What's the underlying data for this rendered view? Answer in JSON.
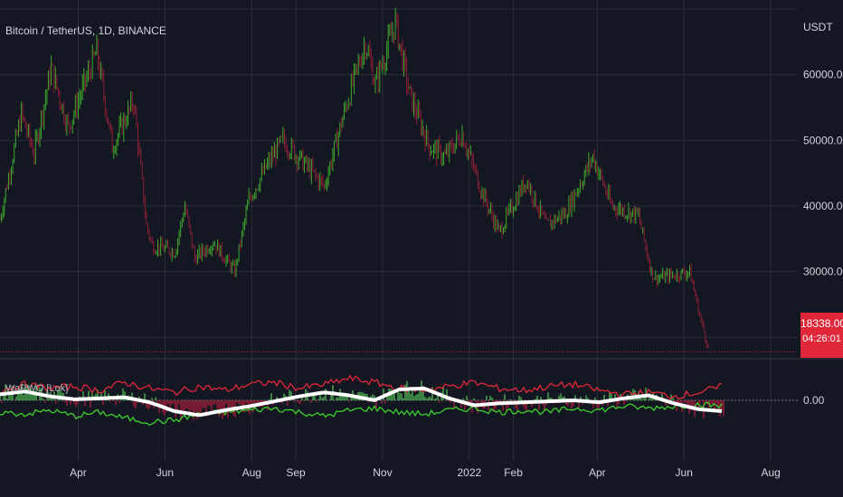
{
  "chart_data": {
    "type": "candlestick",
    "title": "Bitcoin / TetherUS, 1D, BINANCE",
    "indicator_title": "WaPWO [Lok]",
    "price_unit": "USDT",
    "last_price": "18338.00",
    "countdown": "04:26:01",
    "y_ticks": [
      "60000.00",
      "50000.00",
      "40000.00",
      "30000.00"
    ],
    "y_tick_values": [
      60000,
      50000,
      40000,
      30000
    ],
    "indicator_ticks": [
      "0.00"
    ],
    "x_ticks": [
      "Apr",
      "Jun",
      "Aug",
      "Sep",
      "Nov",
      "2022",
      "Feb",
      "Apr",
      "Jun",
      "Aug"
    ],
    "x_tick_dates": [
      "2021-04-01",
      "2021-06-01",
      "2021-08-01",
      "2021-09-01",
      "2021-11-01",
      "2022-01-01",
      "2022-02-01",
      "2022-04-01",
      "2022-06-01",
      "2022-08-01"
    ],
    "x_range": [
      "2021-02-05",
      "2022-08-20"
    ],
    "y_range": [
      17000,
      70000
    ],
    "price_series": {
      "dates": [
        "2021-02-05",
        "2021-02-20",
        "2021-03-01",
        "2021-03-13",
        "2021-03-25",
        "2021-04-14",
        "2021-04-25",
        "2021-05-10",
        "2021-05-19",
        "2021-05-23",
        "2021-06-08",
        "2021-06-15",
        "2021-06-22",
        "2021-07-05",
        "2021-07-20",
        "2021-07-30",
        "2021-08-14",
        "2021-08-23",
        "2021-09-07",
        "2021-09-21",
        "2021-10-06",
        "2021-10-20",
        "2021-10-27",
        "2021-11-10",
        "2021-11-20",
        "2021-12-04",
        "2021-12-15",
        "2021-12-27",
        "2022-01-10",
        "2022-01-22",
        "2022-02-10",
        "2022-02-24",
        "2022-03-10",
        "2022-03-29",
        "2022-04-11",
        "2022-04-30",
        "2022-05-09",
        "2022-05-12",
        "2022-05-25",
        "2022-06-05",
        "2022-06-13",
        "2022-06-18"
      ],
      "close": [
        38000,
        54000,
        48000,
        61000,
        52000,
        63500,
        49000,
        56000,
        37000,
        34000,
        33000,
        40000,
        32000,
        34500,
        30000,
        41000,
        47000,
        50000,
        46500,
        43000,
        55000,
        65000,
        58500,
        68000,
        57000,
        49000,
        47500,
        51000,
        42000,
        36000,
        44000,
        37000,
        39000,
        47500,
        40000,
        38500,
        30000,
        29000,
        29500,
        30000,
        22500,
        18338
      ]
    },
    "indicator": {
      "zero": 0,
      "range": [
        -1.2,
        1.2
      ],
      "osc_white": [
        0.3,
        0.45,
        0.2,
        0.05,
        0.1,
        0.15,
        -0.1,
        -0.55,
        -0.75,
        -0.5,
        -0.3,
        -0.05,
        0.2,
        0.4,
        0.25,
        0.0,
        0.55,
        0.6,
        0.1,
        -0.25,
        -0.15,
        -0.1,
        -0.05,
        0.0,
        -0.1,
        0.1,
        0.25,
        -0.15,
        -0.45,
        -0.55
      ],
      "upper_red": [
        0.5,
        0.8,
        0.6,
        0.7,
        0.5,
        0.9,
        0.6,
        0.4,
        0.7,
        0.5,
        0.8,
        0.9,
        0.6,
        0.8,
        1.1,
        0.9,
        0.6,
        0.5,
        0.7,
        0.9,
        0.6,
        0.5,
        0.7,
        0.8,
        0.5,
        0.3,
        0.4,
        0.2,
        0.4,
        0.7
      ],
      "lower_green": [
        -0.6,
        -0.7,
        -0.5,
        -0.8,
        -0.6,
        -0.9,
        -1.1,
        -1.0,
        -0.7,
        -0.6,
        -0.5,
        -0.4,
        -0.6,
        -0.8,
        -0.5,
        -0.4,
        -0.6,
        -0.7,
        -0.5,
        -0.4,
        -0.6,
        -0.5,
        -0.6,
        -0.4,
        -0.5,
        -0.3,
        -0.4,
        -0.3,
        -0.2,
        -0.3
      ]
    },
    "colors": {
      "background": "#131722",
      "up": "#26a69a",
      "up_candle": "#3fa82b",
      "down_candle": "#8c2034",
      "grid": "#2a2e39",
      "text": "#b2b5be",
      "price_line": "#e0273a",
      "osc": "#ffffff",
      "upper_band": "#e0273a",
      "lower_band": "#3ccf2c",
      "hist_up": "#4caf50",
      "hist_down": "#a0203a"
    },
    "grid": true
  }
}
